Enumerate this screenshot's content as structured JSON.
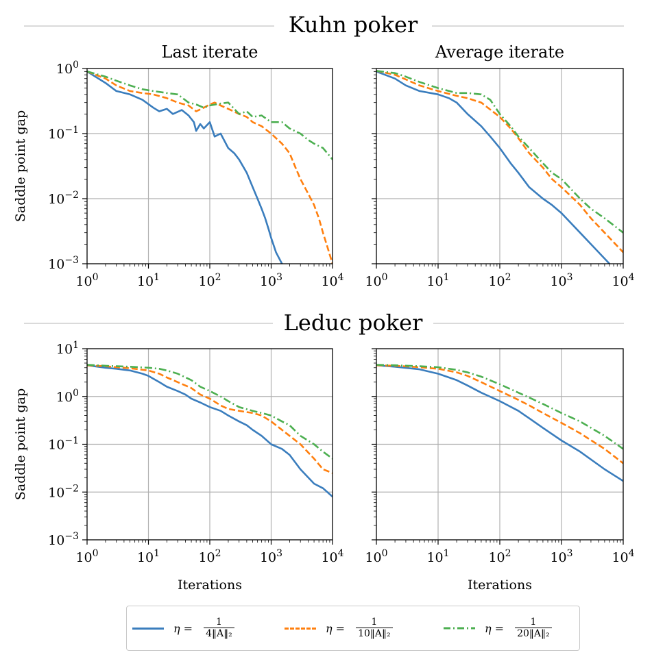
{
  "sections": [
    {
      "title": "Kuhn poker"
    },
    {
      "title": "Leduc poker"
    }
  ],
  "colors": {
    "s1": "#3a7dbd",
    "s2": "#ff7f0e",
    "s3": "#4caf50",
    "grid": "#b0b0b0"
  },
  "legend": {
    "position": "bottom-center",
    "items": [
      {
        "eta": "η =",
        "num": "1",
        "den": "4‖A‖₂",
        "style": "solid",
        "color": "#3a7dbd"
      },
      {
        "eta": "η =",
        "num": "1",
        "den": "10‖A‖₂",
        "style": "dashed",
        "color": "#ff7f0e"
      },
      {
        "eta": "η =",
        "num": "1",
        "den": "20‖A‖₂",
        "style": "dashdot",
        "color": "#4caf50"
      }
    ]
  },
  "chart_data": [
    {
      "type": "line",
      "section": "Kuhn poker",
      "title": "Last iterate",
      "xlabel": "",
      "ylabel": "Saddle point gap",
      "xscale": "log",
      "yscale": "log",
      "xlim": [
        1,
        10000
      ],
      "ylim": [
        0.001,
        1
      ],
      "grid": true,
      "xticks": [
        {
          "base": "10",
          "exp": "0"
        },
        {
          "base": "10",
          "exp": "1"
        },
        {
          "base": "10",
          "exp": "2"
        },
        {
          "base": "10",
          "exp": "3"
        },
        {
          "base": "10",
          "exp": "4"
        }
      ],
      "yticks": [
        {
          "base": "10",
          "exp": "−3"
        },
        {
          "base": "10",
          "exp": "−2"
        },
        {
          "base": "10",
          "exp": "−1"
        },
        {
          "base": "10",
          "exp": "0"
        }
      ],
      "series": [
        {
          "x": [
            1,
            2,
            3,
            5,
            8,
            12,
            15,
            20,
            25,
            35,
            45,
            55,
            60,
            70,
            80,
            100,
            120,
            150,
            200,
            250,
            300,
            400,
            500,
            600,
            700,
            800,
            900,
            1000,
            1200,
            1500
          ],
          "y": [
            0.9,
            0.6,
            0.45,
            0.4,
            0.33,
            0.25,
            0.22,
            0.24,
            0.2,
            0.23,
            0.19,
            0.15,
            0.11,
            0.14,
            0.12,
            0.15,
            0.09,
            0.1,
            0.06,
            0.05,
            0.04,
            0.025,
            0.015,
            0.01,
            0.007,
            0.005,
            0.0035,
            0.0025,
            0.0015,
            0.001
          ]
        },
        {
          "x": [
            1,
            2,
            3,
            5,
            8,
            12,
            20,
            30,
            45,
            60,
            80,
            100,
            120,
            150,
            200,
            300,
            400,
            500,
            700,
            1000,
            1500,
            2000,
            2500,
            3000,
            4000,
            5000,
            6000,
            7000,
            8000,
            10000
          ],
          "y": [
            0.9,
            0.7,
            0.55,
            0.45,
            0.42,
            0.4,
            0.35,
            0.3,
            0.27,
            0.22,
            0.25,
            0.28,
            0.3,
            0.27,
            0.24,
            0.2,
            0.18,
            0.15,
            0.13,
            0.1,
            0.07,
            0.05,
            0.03,
            0.02,
            0.012,
            0.008,
            0.005,
            0.003,
            0.002,
            0.001
          ]
        },
        {
          "x": [
            1,
            2,
            3,
            5,
            8,
            12,
            20,
            30,
            45,
            60,
            80,
            100,
            150,
            200,
            300,
            400,
            500,
            700,
            1000,
            1500,
            2000,
            3000,
            4000,
            5000,
            7000,
            10000
          ],
          "y": [
            0.9,
            0.75,
            0.65,
            0.55,
            0.48,
            0.45,
            0.42,
            0.4,
            0.3,
            0.28,
            0.25,
            0.27,
            0.29,
            0.3,
            0.2,
            0.22,
            0.18,
            0.19,
            0.15,
            0.15,
            0.12,
            0.1,
            0.08,
            0.07,
            0.06,
            0.04
          ]
        }
      ]
    },
    {
      "type": "line",
      "section": "Kuhn poker",
      "title": "Average iterate",
      "xlabel": "",
      "ylabel": "",
      "xscale": "log",
      "yscale": "log",
      "xlim": [
        1,
        10000
      ],
      "ylim": [
        0.001,
        1
      ],
      "grid": true,
      "xticks": [
        {
          "base": "10",
          "exp": "0"
        },
        {
          "base": "10",
          "exp": "1"
        },
        {
          "base": "10",
          "exp": "2"
        },
        {
          "base": "10",
          "exp": "3"
        },
        {
          "base": "10",
          "exp": "4"
        }
      ],
      "yticks": [],
      "series": [
        {
          "x": [
            1,
            2,
            3,
            5,
            10,
            15,
            20,
            30,
            50,
            70,
            100,
            150,
            200,
            300,
            500,
            700,
            1000,
            2000,
            3000,
            5000,
            6000
          ],
          "y": [
            0.9,
            0.7,
            0.55,
            0.45,
            0.4,
            0.35,
            0.3,
            0.2,
            0.13,
            0.09,
            0.06,
            0.035,
            0.025,
            0.015,
            0.01,
            0.008,
            0.006,
            0.003,
            0.002,
            0.0012,
            0.001
          ]
        },
        {
          "x": [
            1,
            2,
            3,
            5,
            10,
            20,
            30,
            50,
            100,
            150,
            200,
            300,
            500,
            700,
            1000,
            2000,
            3000,
            5000,
            10000
          ],
          "y": [
            0.92,
            0.8,
            0.68,
            0.55,
            0.45,
            0.38,
            0.35,
            0.3,
            0.18,
            0.12,
            0.085,
            0.05,
            0.03,
            0.02,
            0.015,
            0.008,
            0.005,
            0.003,
            0.0015
          ]
        },
        {
          "x": [
            1,
            2,
            3,
            5,
            10,
            20,
            30,
            50,
            70,
            100,
            150,
            200,
            300,
            500,
            700,
            1000,
            2000,
            3000,
            5000,
            10000
          ],
          "y": [
            0.92,
            0.85,
            0.75,
            0.62,
            0.5,
            0.42,
            0.42,
            0.4,
            0.33,
            0.2,
            0.13,
            0.09,
            0.06,
            0.035,
            0.025,
            0.02,
            0.01,
            0.007,
            0.005,
            0.003
          ]
        }
      ]
    },
    {
      "type": "line",
      "section": "Leduc poker",
      "title": "",
      "xlabel": "Iterations",
      "ylabel": "Saddle point gap",
      "xscale": "log",
      "yscale": "log",
      "xlim": [
        1,
        10000
      ],
      "ylim": [
        0.001,
        10
      ],
      "grid": true,
      "xticks": [
        {
          "base": "10",
          "exp": "0"
        },
        {
          "base": "10",
          "exp": "1"
        },
        {
          "base": "10",
          "exp": "2"
        },
        {
          "base": "10",
          "exp": "3"
        },
        {
          "base": "10",
          "exp": "4"
        }
      ],
      "yticks": [
        {
          "base": "10",
          "exp": "−3"
        },
        {
          "base": "10",
          "exp": "−2"
        },
        {
          "base": "10",
          "exp": "−1"
        },
        {
          "base": "10",
          "exp": "0"
        },
        {
          "base": "10",
          "exp": "1"
        }
      ],
      "series": [
        {
          "x": [
            1,
            2,
            3,
            5,
            8,
            10,
            15,
            20,
            30,
            40,
            50,
            70,
            100,
            150,
            200,
            300,
            400,
            500,
            700,
            1000,
            1500,
            2000,
            3000,
            5000,
            7000,
            10000
          ],
          "y": [
            4.5,
            4.0,
            3.8,
            3.5,
            3.0,
            2.7,
            2.0,
            1.6,
            1.3,
            1.1,
            0.9,
            0.75,
            0.6,
            0.5,
            0.4,
            0.3,
            0.25,
            0.2,
            0.15,
            0.1,
            0.08,
            0.06,
            0.03,
            0.015,
            0.012,
            0.008
          ]
        },
        {
          "x": [
            1,
            2,
            3,
            5,
            10,
            15,
            20,
            30,
            50,
            70,
            100,
            150,
            200,
            300,
            500,
            700,
            1000,
            1500,
            2000,
            3000,
            5000,
            7000,
            10000
          ],
          "y": [
            4.5,
            4.3,
            4.1,
            3.9,
            3.5,
            3.0,
            2.5,
            2.0,
            1.5,
            1.1,
            0.9,
            0.65,
            0.55,
            0.5,
            0.45,
            0.4,
            0.3,
            0.2,
            0.15,
            0.1,
            0.05,
            0.03,
            0.025
          ]
        },
        {
          "x": [
            1,
            2,
            3,
            5,
            10,
            15,
            20,
            30,
            50,
            70,
            100,
            150,
            200,
            300,
            500,
            700,
            1000,
            1500,
            2000,
            3000,
            5000,
            7000,
            10000
          ],
          "y": [
            4.6,
            4.4,
            4.3,
            4.2,
            4.0,
            3.8,
            3.5,
            3.0,
            2.2,
            1.6,
            1.3,
            1.0,
            0.8,
            0.6,
            0.5,
            0.45,
            0.4,
            0.3,
            0.25,
            0.15,
            0.1,
            0.07,
            0.05
          ]
        }
      ]
    },
    {
      "type": "line",
      "section": "Leduc poker",
      "title": "",
      "xlabel": "Iterations",
      "ylabel": "",
      "xscale": "log",
      "yscale": "log",
      "xlim": [
        1,
        10000
      ],
      "ylim": [
        0.001,
        10
      ],
      "grid": true,
      "xticks": [
        {
          "base": "10",
          "exp": "0"
        },
        {
          "base": "10",
          "exp": "1"
        },
        {
          "base": "10",
          "exp": "2"
        },
        {
          "base": "10",
          "exp": "3"
        },
        {
          "base": "10",
          "exp": "4"
        }
      ],
      "yticks": [],
      "series": [
        {
          "x": [
            1,
            2,
            5,
            10,
            20,
            30,
            50,
            100,
            200,
            300,
            500,
            1000,
            2000,
            5000,
            10000
          ],
          "y": [
            4.5,
            4.2,
            3.7,
            3.0,
            2.2,
            1.7,
            1.2,
            0.8,
            0.5,
            0.35,
            0.22,
            0.12,
            0.07,
            0.03,
            0.017
          ]
        },
        {
          "x": [
            1,
            2,
            5,
            10,
            20,
            30,
            50,
            100,
            200,
            300,
            500,
            1000,
            2000,
            5000,
            10000
          ],
          "y": [
            4.5,
            4.4,
            4.1,
            3.8,
            3.2,
            2.7,
            2.0,
            1.3,
            0.85,
            0.65,
            0.45,
            0.28,
            0.17,
            0.08,
            0.04
          ]
        },
        {
          "x": [
            1,
            2,
            5,
            10,
            20,
            30,
            50,
            100,
            200,
            300,
            500,
            1000,
            2000,
            5000,
            10000
          ],
          "y": [
            4.6,
            4.5,
            4.3,
            4.1,
            3.6,
            3.2,
            2.6,
            1.8,
            1.2,
            0.95,
            0.7,
            0.45,
            0.3,
            0.15,
            0.08
          ]
        }
      ]
    }
  ]
}
